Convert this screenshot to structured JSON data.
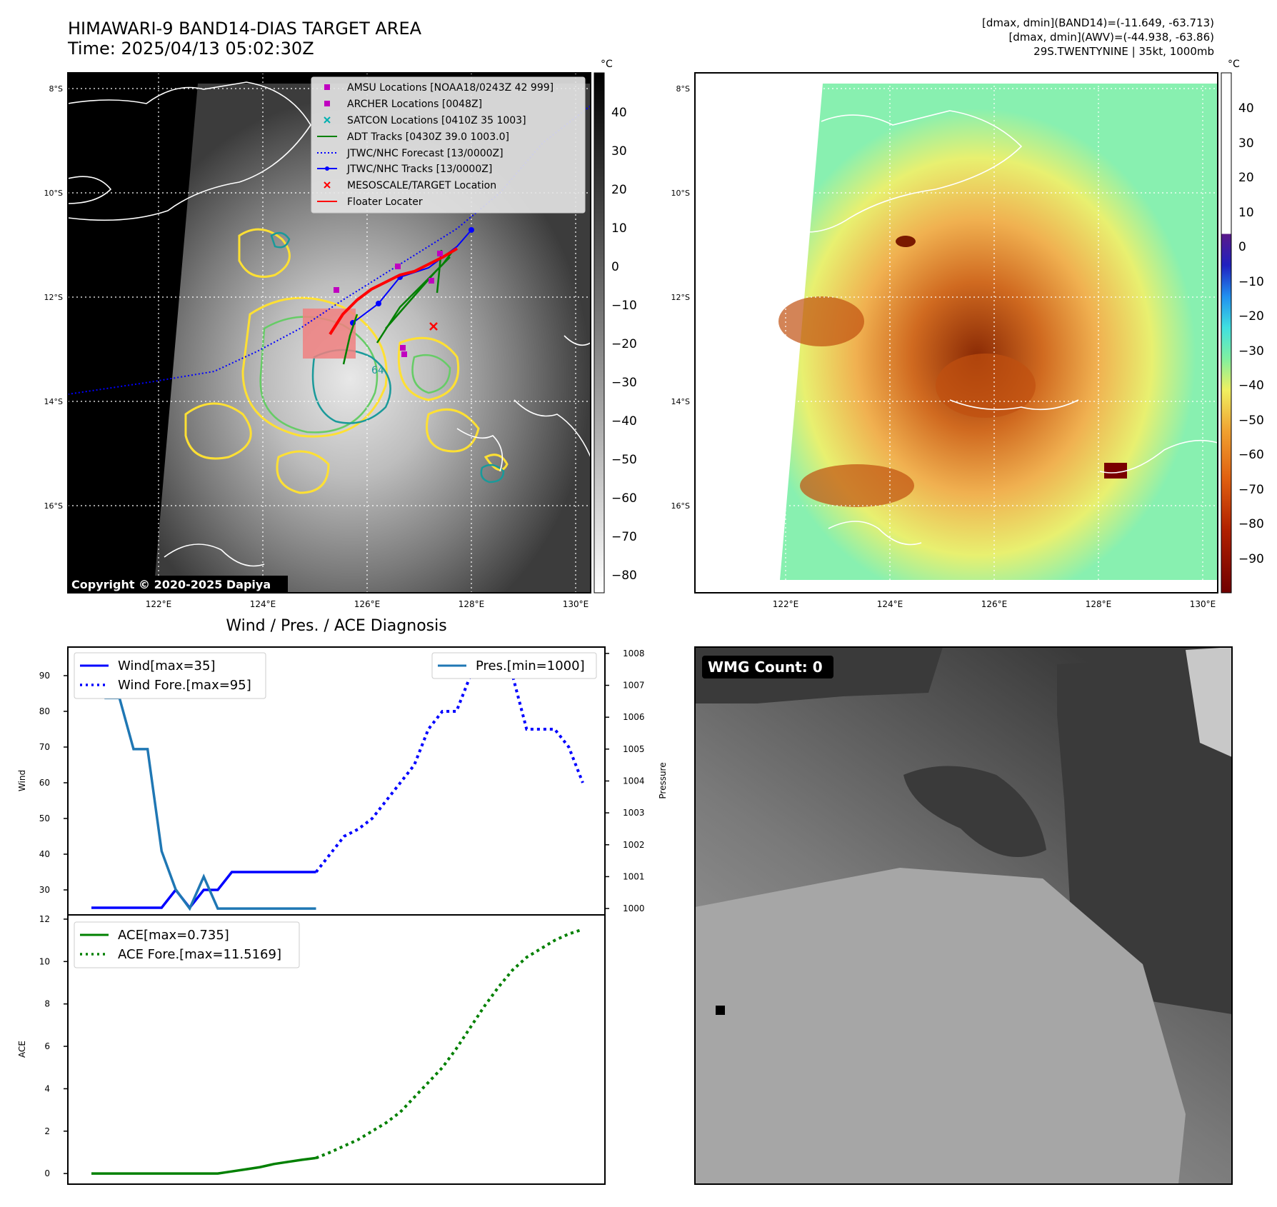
{
  "titles": {
    "main_line1": "HIMAWARI-9 BAND14-DIAS TARGET AREA",
    "main_line2": "Time: 2025/04/13 05:02:30Z",
    "dmax_band14": "[dmax, dmin](BAND14)=(-11.649, -63.713)",
    "dmax_awv": "[dmax, dmin](AWV)=(-44.938, -63.86)",
    "storm_info": "29S.TWENTYNINE | 35kt, 1000mb",
    "diag_title": "Wind / Pres. / ACE Diagnosis",
    "copyright": "Copyright © 2020-2025 Dapiya",
    "wmg_count": "WMG Count: 0"
  },
  "maps": {
    "lat_labels": [
      "8°S",
      "10°S",
      "12°S",
      "14°S",
      "16°S"
    ],
    "lon_labels": [
      "122°E",
      "124°E",
      "126°E",
      "128°E",
      "130°E"
    ],
    "legend": [
      {
        "label": "AMSU Locations [NOAA18/0243Z 42 999]",
        "marker": "square",
        "color": "#c000c0"
      },
      {
        "label": "ARCHER Locations [0048Z]",
        "marker": "square",
        "color": "#c000c0"
      },
      {
        "label": "SATCON Locations [0410Z 35 1003]",
        "marker": "x",
        "color": "#00b0b0"
      },
      {
        "label": "ADT Tracks [0430Z 39.0 1003.0]",
        "marker": "line",
        "color": "#008000"
      },
      {
        "label": "JTWC/NHC Forecast [13/0000Z]",
        "marker": "dotted",
        "color": "#0000ff"
      },
      {
        "label": "JTWC/NHC Tracks [13/0000Z]",
        "marker": "dotline",
        "color": "#0000ff"
      },
      {
        "label": "MESOSCALE/TARGET Location",
        "marker": "x",
        "color": "#ff0000"
      },
      {
        "label": "Floater Locater",
        "marker": "line",
        "color": "#ff0000"
      }
    ],
    "contour_label": "64",
    "cbar_unit": "°C",
    "cbar1_ticks": [
      "40",
      "30",
      "20",
      "10",
      "0",
      "−10",
      "−20",
      "−30",
      "−40",
      "−50",
      "−60",
      "−70",
      "−80"
    ],
    "cbar2_ticks": [
      "40",
      "30",
      "20",
      "10",
      "0",
      "−10",
      "−20",
      "−30",
      "−40",
      "−50",
      "−60",
      "−70",
      "−80",
      "−90"
    ]
  },
  "chart_data": [
    {
      "type": "line",
      "title": "Wind / Pres. / ACE Diagnosis",
      "ylabel": "Wind",
      "y2label": "Pressure",
      "ylim": [
        23,
        98
      ],
      "y2lim": [
        999.8,
        1008.2
      ],
      "yticks": [
        30,
        40,
        50,
        60,
        70,
        80,
        90
      ],
      "y2ticks": [
        1000,
        1001,
        1002,
        1003,
        1004,
        1005,
        1006,
        1007,
        1008
      ],
      "series": [
        {
          "name": "Wind[max=35]",
          "axis": "left",
          "style": "solid",
          "color": "#0000ff",
          "x": [
            0,
            1,
            2,
            3,
            4,
            5,
            6,
            7,
            8,
            9,
            10,
            11,
            12,
            13,
            14,
            15,
            16
          ],
          "values": [
            25,
            25,
            25,
            25,
            25,
            25,
            30,
            25,
            30,
            30,
            35,
            35,
            35,
            35,
            35,
            35,
            35
          ]
        },
        {
          "name": "Wind Fore.[max=95]",
          "axis": "left",
          "style": "dotted",
          "color": "#0000ff",
          "x": [
            16,
            17,
            18,
            19,
            20,
            21,
            22,
            23,
            24,
            25,
            26,
            27,
            28,
            29,
            30,
            31,
            32,
            33,
            34,
            35
          ],
          "values": [
            35,
            40,
            45,
            47,
            50,
            55,
            60,
            65,
            75,
            80,
            80,
            90,
            95,
            95,
            90,
            75,
            75,
            75,
            70,
            60
          ]
        },
        {
          "name": "Pres.[min=1000]",
          "axis": "right",
          "style": "solid",
          "color": "#1f77b4",
          "x": [
            0,
            1,
            2,
            3,
            4,
            5,
            6,
            7,
            8,
            9,
            10,
            11,
            12,
            13,
            14,
            15,
            16
          ],
          "values": [
            1008.0,
            1006.6,
            1006.6,
            1005.0,
            1005.0,
            1001.8,
            1000.6,
            1000.0,
            1001.0,
            1000.0,
            1000.0,
            1000.0,
            1000.0,
            1000.0,
            1000.0,
            1000.0,
            1000.0
          ]
        }
      ]
    },
    {
      "type": "line",
      "ylabel": "ACE",
      "ylim": [
        -0.5,
        12.2
      ],
      "yticks": [
        0,
        2,
        4,
        6,
        8,
        10,
        12
      ],
      "series": [
        {
          "name": "ACE[max=0.735]",
          "style": "solid",
          "color": "#008000",
          "x": [
            0,
            1,
            2,
            3,
            4,
            5,
            6,
            7,
            8,
            9,
            10,
            11,
            12,
            13,
            14,
            15,
            16
          ],
          "values": [
            0,
            0,
            0,
            0,
            0,
            0,
            0,
            0,
            0,
            0,
            0.1,
            0.2,
            0.3,
            0.45,
            0.55,
            0.65,
            0.735
          ]
        },
        {
          "name": "ACE Fore.[max=11.5169]",
          "style": "dotted",
          "color": "#008000",
          "x": [
            16,
            17,
            18,
            19,
            20,
            21,
            22,
            23,
            24,
            25,
            26,
            27,
            28,
            29,
            30,
            31,
            32,
            33,
            34,
            35
          ],
          "values": [
            0.735,
            1.0,
            1.3,
            1.6,
            2.0,
            2.4,
            2.9,
            3.6,
            4.3,
            5.0,
            5.9,
            6.9,
            7.9,
            8.8,
            9.6,
            10.2,
            10.6,
            11.0,
            11.3,
            11.5169
          ]
        }
      ]
    }
  ]
}
